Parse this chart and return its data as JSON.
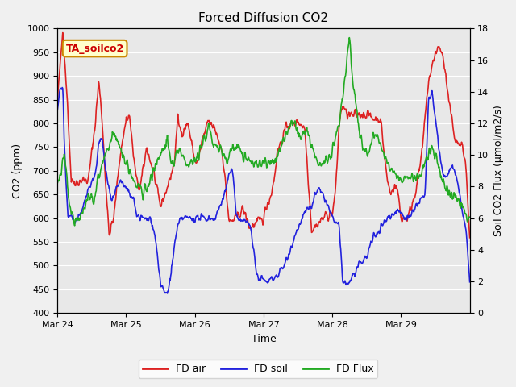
{
  "title": "Forced Diffusion CO2",
  "xlabel": "Time",
  "ylabel_left": "CO2 (ppm)",
  "ylabel_right": "Soil CO2 Flux (μmol/m2/s)",
  "annotation": "TA_soilco2",
  "ylim_left": [
    400,
    1000
  ],
  "ylim_right": [
    0,
    18
  ],
  "xtick_labels": [
    "Mar 24",
    "Mar 25",
    "Mar 26",
    "Mar 27",
    "Mar 28",
    "Mar 29"
  ],
  "legend": [
    {
      "label": "FD air",
      "color": "#dd2222"
    },
    {
      "label": "FD soil",
      "color": "#2222dd"
    },
    {
      "label": "FD Flux",
      "color": "#22aa22"
    }
  ],
  "plot_bg_color": "#e8e8e8",
  "grid_color": "#ffffff",
  "line_width": 1.2,
  "keypoints_air": [
    [
      0.0,
      850
    ],
    [
      0.05,
      940
    ],
    [
      0.08,
      1000
    ],
    [
      0.15,
      830
    ],
    [
      0.2,
      680
    ],
    [
      0.3,
      675
    ],
    [
      0.35,
      680
    ],
    [
      0.4,
      680
    ],
    [
      0.45,
      680
    ],
    [
      0.55,
      800
    ],
    [
      0.6,
      890
    ],
    [
      0.65,
      810
    ],
    [
      0.7,
      680
    ],
    [
      0.75,
      565
    ],
    [
      0.82,
      600
    ],
    [
      0.9,
      720
    ],
    [
      1.0,
      810
    ],
    [
      1.05,
      815
    ],
    [
      1.1,
      740
    ],
    [
      1.15,
      680
    ],
    [
      1.2,
      660
    ],
    [
      1.3,
      750
    ],
    [
      1.35,
      720
    ],
    [
      1.4,
      700
    ],
    [
      1.45,
      655
    ],
    [
      1.5,
      625
    ],
    [
      1.6,
      665
    ],
    [
      1.7,
      715
    ],
    [
      1.75,
      810
    ],
    [
      1.8,
      780
    ],
    [
      1.9,
      800
    ],
    [
      2.0,
      720
    ],
    [
      2.05,
      720
    ],
    [
      2.1,
      760
    ],
    [
      2.2,
      805
    ],
    [
      2.3,
      785
    ],
    [
      2.4,
      740
    ],
    [
      2.5,
      590
    ],
    [
      2.6,
      600
    ],
    [
      2.7,
      620
    ],
    [
      2.8,
      580
    ],
    [
      3.0,
      600
    ],
    [
      3.05,
      630
    ],
    [
      3.1,
      645
    ],
    [
      3.15,
      680
    ],
    [
      3.2,
      740
    ],
    [
      3.3,
      780
    ],
    [
      3.35,
      800
    ],
    [
      3.4,
      795
    ],
    [
      3.5,
      805
    ],
    [
      3.6,
      790
    ],
    [
      3.7,
      575
    ],
    [
      3.8,
      590
    ],
    [
      3.9,
      605
    ],
    [
      4.0,
      610
    ],
    [
      4.05,
      660
    ],
    [
      4.1,
      800
    ],
    [
      4.15,
      840
    ],
    [
      4.2,
      820
    ],
    [
      4.3,
      815
    ],
    [
      4.4,
      820
    ],
    [
      4.5,
      820
    ],
    [
      4.6,
      810
    ],
    [
      4.7,
      810
    ],
    [
      4.8,
      680
    ],
    [
      4.85,
      650
    ],
    [
      4.9,
      670
    ],
    [
      4.95,
      660
    ],
    [
      5.0,
      600
    ],
    [
      5.05,
      600
    ],
    [
      5.1,
      600
    ],
    [
      5.2,
      650
    ],
    [
      5.3,
      730
    ],
    [
      5.35,
      810
    ],
    [
      5.4,
      890
    ],
    [
      5.45,
      915
    ],
    [
      5.5,
      950
    ],
    [
      5.55,
      960
    ],
    [
      5.6,
      950
    ],
    [
      5.65,
      900
    ],
    [
      5.7,
      840
    ],
    [
      5.75,
      800
    ],
    [
      5.8,
      760
    ],
    [
      5.9,
      750
    ],
    [
      5.95,
      700
    ],
    [
      6.0,
      550
    ]
  ],
  "keypoints_soil": [
    [
      0.0,
      830
    ],
    [
      0.05,
      880
    ],
    [
      0.08,
      870
    ],
    [
      0.1,
      750
    ],
    [
      0.15,
      600
    ],
    [
      0.2,
      600
    ],
    [
      0.25,
      590
    ],
    [
      0.3,
      600
    ],
    [
      0.35,
      610
    ],
    [
      0.4,
      640
    ],
    [
      0.45,
      660
    ],
    [
      0.5,
      680
    ],
    [
      0.55,
      690
    ],
    [
      0.6,
      760
    ],
    [
      0.65,
      765
    ],
    [
      0.7,
      700
    ],
    [
      0.75,
      665
    ],
    [
      0.8,
      640
    ],
    [
      0.85,
      660
    ],
    [
      0.9,
      680
    ],
    [
      0.95,
      670
    ],
    [
      1.0,
      660
    ],
    [
      1.05,
      650
    ],
    [
      1.1,
      640
    ],
    [
      1.15,
      610
    ],
    [
      1.2,
      600
    ],
    [
      1.25,
      600
    ],
    [
      1.3,
      595
    ],
    [
      1.35,
      600
    ],
    [
      1.4,
      580
    ],
    [
      1.45,
      530
    ],
    [
      1.5,
      460
    ],
    [
      1.55,
      445
    ],
    [
      1.6,
      440
    ],
    [
      1.65,
      480
    ],
    [
      1.7,
      540
    ],
    [
      1.75,
      580
    ],
    [
      1.8,
      600
    ],
    [
      1.9,
      600
    ],
    [
      2.0,
      600
    ],
    [
      2.05,
      600
    ],
    [
      2.1,
      600
    ],
    [
      2.2,
      600
    ],
    [
      2.3,
      600
    ],
    [
      2.35,
      620
    ],
    [
      2.4,
      640
    ],
    [
      2.45,
      660
    ],
    [
      2.5,
      695
    ],
    [
      2.55,
      700
    ],
    [
      2.6,
      605
    ],
    [
      2.65,
      600
    ],
    [
      2.7,
      595
    ],
    [
      2.8,
      590
    ],
    [
      2.9,
      480
    ],
    [
      3.0,
      470
    ],
    [
      3.05,
      465
    ],
    [
      3.1,
      470
    ],
    [
      3.2,
      480
    ],
    [
      3.3,
      500
    ],
    [
      3.4,
      540
    ],
    [
      3.5,
      580
    ],
    [
      3.6,
      610
    ],
    [
      3.65,
      620
    ],
    [
      3.7,
      625
    ],
    [
      3.75,
      650
    ],
    [
      3.8,
      660
    ],
    [
      3.9,
      640
    ],
    [
      4.0,
      600
    ],
    [
      4.05,
      590
    ],
    [
      4.1,
      580
    ],
    [
      4.15,
      470
    ],
    [
      4.2,
      460
    ],
    [
      4.25,
      465
    ],
    [
      4.3,
      480
    ],
    [
      4.4,
      500
    ],
    [
      4.5,
      520
    ],
    [
      4.6,
      560
    ],
    [
      4.7,
      580
    ],
    [
      4.8,
      600
    ],
    [
      4.9,
      610
    ],
    [
      4.95,
      620
    ],
    [
      5.0,
      610
    ],
    [
      5.1,
      600
    ],
    [
      5.2,
      620
    ],
    [
      5.3,
      640
    ],
    [
      5.35,
      650
    ],
    [
      5.4,
      850
    ],
    [
      5.45,
      860
    ],
    [
      5.5,
      810
    ],
    [
      5.55,
      750
    ],
    [
      5.6,
      700
    ],
    [
      5.65,
      680
    ],
    [
      5.7,
      700
    ],
    [
      5.75,
      710
    ],
    [
      5.8,
      690
    ],
    [
      5.9,
      610
    ],
    [
      5.95,
      570
    ],
    [
      6.0,
      465
    ]
  ],
  "keypoints_flux": [
    [
      0.0,
      8
    ],
    [
      0.05,
      9
    ],
    [
      0.1,
      10
    ],
    [
      0.15,
      8
    ],
    [
      0.2,
      6
    ],
    [
      0.25,
      5.8
    ],
    [
      0.3,
      5.8
    ],
    [
      0.35,
      6.5
    ],
    [
      0.4,
      6.8
    ],
    [
      0.45,
      7.5
    ],
    [
      0.5,
      7.2
    ],
    [
      0.55,
      7.5
    ],
    [
      0.6,
      8.8
    ],
    [
      0.65,
      9.5
    ],
    [
      0.7,
      10
    ],
    [
      0.75,
      10.5
    ],
    [
      0.8,
      11.5
    ],
    [
      0.85,
      11
    ],
    [
      0.9,
      10.5
    ],
    [
      0.95,
      10
    ],
    [
      1.0,
      9.5
    ],
    [
      1.05,
      9
    ],
    [
      1.1,
      8.5
    ],
    [
      1.15,
      8
    ],
    [
      1.2,
      8
    ],
    [
      1.25,
      7.5
    ],
    [
      1.3,
      8
    ],
    [
      1.35,
      8.5
    ],
    [
      1.4,
      9
    ],
    [
      1.45,
      9.5
    ],
    [
      1.5,
      10
    ],
    [
      1.55,
      10.5
    ],
    [
      1.6,
      10.8
    ],
    [
      1.65,
      9.5
    ],
    [
      1.7,
      9.5
    ],
    [
      1.75,
      10.5
    ],
    [
      1.8,
      10
    ],
    [
      1.85,
      9.5
    ],
    [
      1.9,
      9.5
    ],
    [
      2.0,
      9.8
    ],
    [
      2.05,
      10
    ],
    [
      2.1,
      10.5
    ],
    [
      2.15,
      11
    ],
    [
      2.2,
      12
    ],
    [
      2.25,
      11
    ],
    [
      2.3,
      10.5
    ],
    [
      2.35,
      10.5
    ],
    [
      2.4,
      10
    ],
    [
      2.45,
      9.8
    ],
    [
      2.5,
      10
    ],
    [
      2.55,
      10.5
    ],
    [
      2.6,
      10.5
    ],
    [
      2.65,
      10.5
    ],
    [
      2.7,
      10
    ],
    [
      2.8,
      9.5
    ],
    [
      2.9,
      9.5
    ],
    [
      3.0,
      9.5
    ],
    [
      3.05,
      9.5
    ],
    [
      3.1,
      9.5
    ],
    [
      3.15,
      9.5
    ],
    [
      3.2,
      10
    ],
    [
      3.25,
      10.5
    ],
    [
      3.3,
      11
    ],
    [
      3.35,
      11.5
    ],
    [
      3.4,
      12
    ],
    [
      3.45,
      12
    ],
    [
      3.5,
      11.5
    ],
    [
      3.55,
      11
    ],
    [
      3.6,
      11.5
    ],
    [
      3.65,
      11.5
    ],
    [
      3.7,
      10.5
    ],
    [
      3.75,
      10
    ],
    [
      3.8,
      9.5
    ],
    [
      3.9,
      9.5
    ],
    [
      4.0,
      10
    ],
    [
      4.05,
      11
    ],
    [
      4.1,
      12
    ],
    [
      4.15,
      13.5
    ],
    [
      4.2,
      15.5
    ],
    [
      4.25,
      17.5
    ],
    [
      4.3,
      14.5
    ],
    [
      4.35,
      13
    ],
    [
      4.4,
      11.5
    ],
    [
      4.45,
      10.5
    ],
    [
      4.5,
      10
    ],
    [
      4.55,
      10.5
    ],
    [
      4.6,
      11.5
    ],
    [
      4.65,
      11.5
    ],
    [
      4.7,
      10.5
    ],
    [
      4.75,
      10
    ],
    [
      4.8,
      9.5
    ],
    [
      4.85,
      9
    ],
    [
      4.9,
      9
    ],
    [
      4.95,
      8.5
    ],
    [
      5.0,
      8.5
    ],
    [
      5.05,
      8.5
    ],
    [
      5.1,
      8.5
    ],
    [
      5.15,
      8.5
    ],
    [
      5.2,
      8.5
    ],
    [
      5.25,
      8.5
    ],
    [
      5.3,
      9
    ],
    [
      5.35,
      9.5
    ],
    [
      5.4,
      10
    ],
    [
      5.45,
      10.5
    ],
    [
      5.5,
      10
    ],
    [
      5.55,
      9
    ],
    [
      5.6,
      8.5
    ],
    [
      5.65,
      8
    ],
    [
      5.7,
      7.5
    ],
    [
      5.75,
      7.5
    ],
    [
      5.8,
      7.5
    ],
    [
      5.85,
      7
    ],
    [
      5.9,
      6.5
    ],
    [
      5.95,
      6
    ],
    [
      6.0,
      6
    ]
  ]
}
